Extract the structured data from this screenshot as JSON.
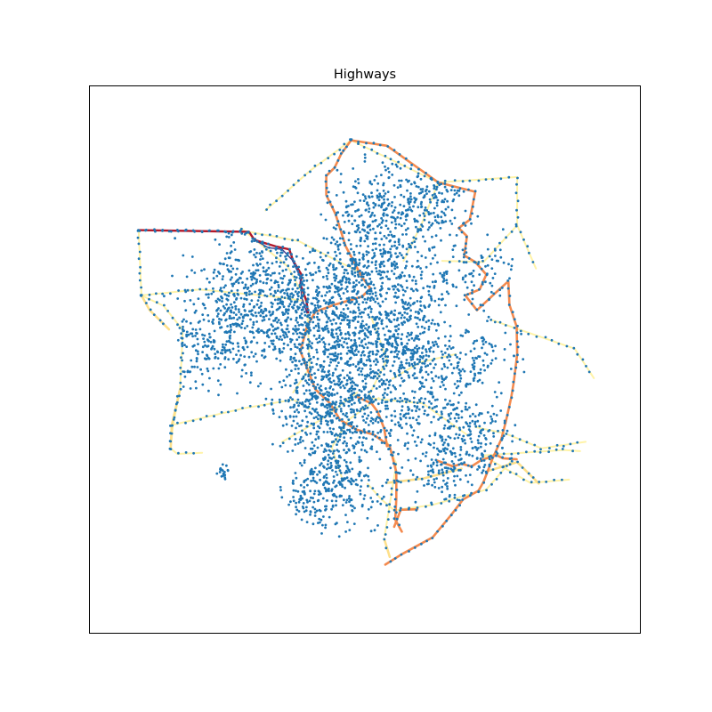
{
  "chart_data": {
    "type": "scatter",
    "title": "Highways",
    "xlabel": "",
    "ylabel": "",
    "axes": {
      "ticks_visible": false,
      "grid": false
    },
    "xlim": [
      0,
      100
    ],
    "ylim": [
      0,
      100
    ],
    "layers": [
      {
        "kind": "lines",
        "role": "minor-roads",
        "color": "#fff3a8",
        "paths": [
          [
            [
              9,
              73.6
            ],
            [
              9.5,
              61.7
            ],
            [
              13.5,
              59.8
            ],
            [
              17,
              55.4
            ],
            [
              16.5,
              44.6
            ],
            [
              15.2,
              37.8
            ],
            [
              14.8,
              33.8
            ],
            [
              16,
              32.8
            ],
            [
              20.5,
              33
            ]
          ],
          [
            [
              9,
              73.6
            ],
            [
              29,
              73.3
            ],
            [
              38,
              71.6
            ],
            [
              49.5,
              65.7
            ]
          ],
          [
            [
              9.5,
              61.7
            ],
            [
              20,
              62.8
            ],
            [
              33.5,
              61.5
            ],
            [
              39,
              60.7
            ]
          ],
          [
            [
              14.8,
              38
            ],
            [
              28,
              41.1
            ],
            [
              37,
              42.7
            ],
            [
              40,
              41
            ]
          ],
          [
            [
              32,
              77.2
            ],
            [
              40,
              84.4
            ],
            [
              47.5,
              90
            ]
          ],
          [
            [
              47.5,
              90
            ],
            [
              63.3,
              82.3
            ],
            [
              77.6,
              83.3
            ],
            [
              77.6,
              74.5
            ],
            [
              81,
              66.6
            ]
          ],
          [
            [
              63.3,
              82.3
            ],
            [
              60.3,
              74.8
            ],
            [
              57,
              68
            ]
          ],
          [
            [
              77.6,
              74.5
            ],
            [
              71.5,
              67.8
            ],
            [
              64,
              68
            ]
          ],
          [
            [
              73,
              57.2
            ],
            [
              88,
              52
            ],
            [
              91.5,
              46.6
            ]
          ],
          [
            [
              71.3,
              32.5
            ],
            [
              86,
              33.5
            ],
            [
              89,
              33.3
            ]
          ],
          [
            [
              71.3,
              32.5
            ],
            [
              80,
              27.5
            ],
            [
              87,
              28.1
            ]
          ],
          [
            [
              70,
              37.7
            ],
            [
              75.5,
              36.5
            ],
            [
              82,
              33.8
            ],
            [
              90,
              35
            ]
          ],
          [
            [
              76.5,
              31.5
            ],
            [
              72,
              26.3
            ],
            [
              62.3,
              23.5
            ]
          ],
          [
            [
              62.3,
              23.5
            ],
            [
              55.3,
              22.5
            ],
            [
              53,
              24.5
            ],
            [
              50.5,
              27.3
            ]
          ],
          [
            [
              53.6,
              18
            ],
            [
              55.7,
              31
            ],
            [
              54,
              35
            ]
          ],
          [
            [
              46,
              27.9
            ],
            [
              44,
              34
            ],
            [
              47,
              39
            ],
            [
              52.5,
              43
            ]
          ],
          [
            [
              35,
              35
            ],
            [
              42,
              39
            ],
            [
              48.6,
              44
            ]
          ],
          [
            [
              51.2,
              57.6
            ],
            [
              54,
              50
            ],
            [
              50.5,
              43
            ]
          ],
          [
            [
              66.5,
              51
            ],
            [
              60,
              49.5
            ],
            [
              55,
              46.5
            ]
          ],
          [
            [
              50.5,
              43
            ],
            [
              60.5,
              42
            ],
            [
              68.5,
              36.3
            ]
          ],
          [
            [
              27.5,
              74
            ],
            [
              36,
              67
            ],
            [
              39.5,
              60.5
            ],
            [
              40,
              48.5
            ],
            [
              37,
              44
            ]
          ]
        ]
      },
      {
        "kind": "lines",
        "role": "secondary-roads",
        "color": "#fee08b",
        "paths": [
          [
            [
              9.5,
              61.7
            ],
            [
              11,
              59
            ],
            [
              14.5,
              55.5
            ]
          ],
          [
            [
              14.8,
              33.8
            ],
            [
              15,
              38
            ],
            [
              16.5,
              44.6
            ]
          ],
          [
            [
              54,
              27.5
            ],
            [
              60.5,
              28.3
            ],
            [
              67.5,
              30.1
            ]
          ],
          [
            [
              72,
              29.6
            ],
            [
              77.6,
              31.3
            ],
            [
              81.5,
              27.4
            ]
          ],
          [
            [
              53.5,
              17.3
            ],
            [
              54.5,
              14
            ]
          ]
        ]
      },
      {
        "kind": "lines",
        "role": "primary-roads",
        "color": "#f48a4e",
        "paths": [
          [
            [
              47.5,
              90
            ],
            [
              54,
              89
            ],
            [
              63.3,
              82.3
            ],
            [
              70,
              80.6
            ]
          ],
          [
            [
              47.5,
              90
            ],
            [
              45.7,
              87.5
            ],
            [
              44.5,
              85
            ],
            [
              43,
              83.5
            ],
            [
              43,
              80
            ],
            [
              44.7,
              76.5
            ],
            [
              46.5,
              70.7
            ],
            [
              49.5,
              65
            ],
            [
              51,
              63
            ],
            [
              49.5,
              61.5
            ],
            [
              44.5,
              60
            ],
            [
              41,
              58.7
            ],
            [
              39.5,
              56
            ],
            [
              38.3,
              51.5
            ],
            [
              39.5,
              48.5
            ],
            [
              41,
              44.6
            ],
            [
              43.7,
              42
            ],
            [
              45.5,
              39
            ],
            [
              48.5,
              37.2
            ],
            [
              51.6,
              36.3
            ],
            [
              54.5,
              34.2
            ],
            [
              55.7,
              29.5
            ],
            [
              55.7,
              24.6
            ],
            [
              55.5,
              20.8
            ],
            [
              56.7,
              18.6
            ]
          ],
          [
            [
              70,
              80.6
            ],
            [
              69,
              75.5
            ],
            [
              67,
              74
            ],
            [
              68.5,
              72.5
            ],
            [
              68,
              69
            ],
            [
              70,
              67.8
            ],
            [
              72,
              65.5
            ],
            [
              70.8,
              62.8
            ],
            [
              68.2,
              61.7
            ],
            [
              70.3,
              59
            ],
            [
              73.5,
              62
            ],
            [
              76,
              64.3
            ],
            [
              76.2,
              60
            ],
            [
              77.5,
              56
            ],
            [
              77.6,
              51
            ],
            [
              77,
              46
            ],
            [
              76.5,
              43
            ],
            [
              75.5,
              38.5
            ],
            [
              74.7,
              35.4
            ],
            [
              73.2,
              32.1
            ],
            [
              71.5,
              27.7
            ],
            [
              70.6,
              26.1
            ],
            [
              67.8,
              24.5
            ],
            [
              65.5,
              21.5
            ],
            [
              62.3,
              17.6
            ],
            [
              56.7,
              14.5
            ],
            [
              53.7,
              12.6
            ]
          ],
          [
            [
              48.4,
              43.3
            ],
            [
              51.2,
              42
            ],
            [
              52.3,
              40.5
            ],
            [
              53.5,
              37.4
            ],
            [
              54,
              34.2
            ]
          ],
          [
            [
              63,
              31.6
            ],
            [
              66,
              30.5
            ],
            [
              67.5,
              31
            ],
            [
              69.3,
              30.5
            ],
            [
              71,
              31.6
            ],
            [
              73.8,
              32.6
            ],
            [
              75,
              32
            ],
            [
              77.5,
              31.8
            ]
          ],
          [
            [
              59.5,
              22.7
            ],
            [
              56.5,
              22.6
            ],
            [
              55.3,
              19.5
            ]
          ]
        ]
      },
      {
        "kind": "lines",
        "role": "motorway",
        "color": "#b2182b",
        "paths": [
          [
            [
              9,
              73.6
            ],
            [
              29,
              73.3
            ],
            [
              30,
              71.8
            ],
            [
              34,
              70.6
            ],
            [
              36.3,
              70.1
            ],
            [
              37,
              68
            ],
            [
              38.5,
              65.5
            ],
            [
              38.3,
              63.7
            ],
            [
              39.4,
              60.7
            ],
            [
              39.7,
              58.6
            ]
          ]
        ]
      },
      {
        "kind": "lines",
        "role": "motorway-link",
        "color": "#3b3b8f",
        "paths": [
          [
            [
              30,
              71.8
            ],
            [
              32.5,
              70.4
            ],
            [
              35,
              70.1
            ],
            [
              36.8,
              68.2
            ],
            [
              38.3,
              65
            ],
            [
              38.5,
              61.5
            ],
            [
              39.5,
              58.5
            ]
          ]
        ]
      },
      {
        "kind": "points",
        "role": "nodes",
        "color": "#1f77b4",
        "marker_size": 2,
        "count": 4600
      }
    ]
  }
}
